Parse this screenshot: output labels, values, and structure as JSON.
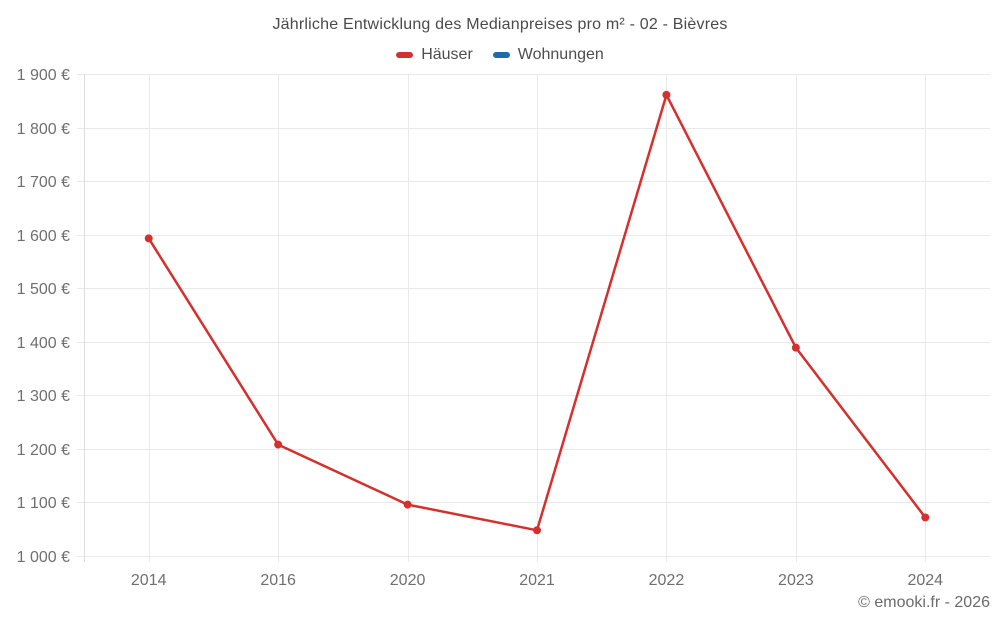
{
  "chart_data": {
    "type": "line",
    "title": "Jährliche Entwicklung des Medianpreises pro m² - 02 - Bièvres",
    "categories": [
      "2014",
      "2016",
      "2020",
      "2021",
      "2022",
      "2023",
      "2024"
    ],
    "series": [
      {
        "name": "Häuser",
        "color": "#d4302e",
        "values": [
          1593,
          1208,
          1096,
          1048,
          1861,
          1389,
          1072
        ]
      },
      {
        "name": "Wohnungen",
        "color": "#1b6ca8",
        "values": []
      }
    ],
    "xlabel": "",
    "ylabel": "",
    "ylim": [
      1000,
      1900
    ],
    "y_step": 100,
    "y_tick_labels": [
      "1 000 €",
      "1 100 €",
      "1 200 €",
      "1 300 €",
      "1 400 €",
      "1 500 €",
      "1 600 €",
      "1 700 €",
      "1 800 €",
      "1 900 €"
    ],
    "grid": true,
    "legend_position": "top"
  },
  "footer": {
    "credit": "© emooki.fr - 2026"
  },
  "colors": {
    "grid": "#e9e9e9",
    "axis_border": "#dcdcdc",
    "tick_label": "#6f6f6f",
    "title_text": "#4a4a4a",
    "footer_text": "#6b6b6b",
    "hauser_red": "#d4302e",
    "wohnungen_blue": "#1b6ca8"
  }
}
